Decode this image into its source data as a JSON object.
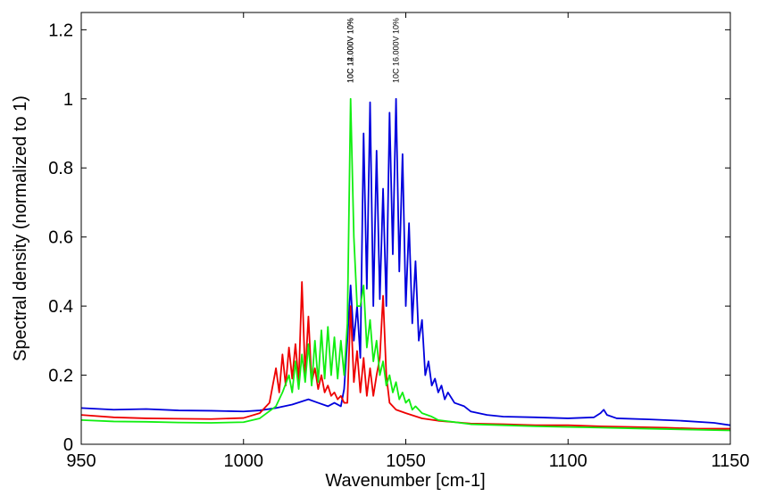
{
  "chart_data": {
    "type": "line",
    "title": "",
    "xlabel": "Wavenumber [cm-1]",
    "ylabel": "Spectral density (normalized to 1)",
    "xlim": [
      950,
      1150
    ],
    "ylim": [
      0,
      1.25
    ],
    "xticks": [
      950,
      1000,
      1050,
      1100,
      1150
    ],
    "xtick_labels": [
      "950",
      "1000",
      "1050",
      "1100",
      "1150"
    ],
    "yticks": [
      0,
      0.2,
      0.4,
      0.6,
      0.8,
      1.0,
      1.2
    ],
    "ytick_labels": [
      "0",
      "0.2",
      "0.4",
      "0.6",
      "0.8",
      "1",
      "1.2"
    ],
    "grid": false,
    "legend": "none",
    "peak_labels": [
      {
        "x": 1033,
        "text": "10C 12.000V 10%"
      },
      {
        "x": 1033,
        "text": "10C 14.000V 10%"
      },
      {
        "x": 1047,
        "text": "10C 16.000V 10%"
      }
    ],
    "series": [
      {
        "color": "#0000dd",
        "points": [
          [
            950,
            0.105
          ],
          [
            960,
            0.1
          ],
          [
            970,
            0.102
          ],
          [
            980,
            0.098
          ],
          [
            990,
            0.097
          ],
          [
            1000,
            0.095
          ],
          [
            1005,
            0.098
          ],
          [
            1010,
            0.105
          ],
          [
            1015,
            0.115
          ],
          [
            1020,
            0.13
          ],
          [
            1023,
            0.12
          ],
          [
            1026,
            0.11
          ],
          [
            1028,
            0.12
          ],
          [
            1030,
            0.11
          ],
          [
            1031,
            0.16
          ],
          [
            1032,
            0.3
          ],
          [
            1033,
            0.46
          ],
          [
            1034,
            0.3
          ],
          [
            1035,
            0.4
          ],
          [
            1036,
            0.25
          ],
          [
            1037,
            0.9
          ],
          [
            1038,
            0.45
          ],
          [
            1039,
            0.99
          ],
          [
            1040,
            0.4
          ],
          [
            1041,
            0.85
          ],
          [
            1042,
            0.42
          ],
          [
            1043,
            0.74
          ],
          [
            1044,
            0.4
          ],
          [
            1045,
            0.96
          ],
          [
            1046,
            0.55
          ],
          [
            1047,
            1.0
          ],
          [
            1048,
            0.5
          ],
          [
            1049,
            0.84
          ],
          [
            1050,
            0.4
          ],
          [
            1051,
            0.64
          ],
          [
            1052,
            0.35
          ],
          [
            1053,
            0.53
          ],
          [
            1054,
            0.3
          ],
          [
            1055,
            0.36
          ],
          [
            1056,
            0.2
          ],
          [
            1057,
            0.24
          ],
          [
            1058,
            0.17
          ],
          [
            1059,
            0.19
          ],
          [
            1060,
            0.15
          ],
          [
            1061,
            0.17
          ],
          [
            1062,
            0.13
          ],
          [
            1063,
            0.15
          ],
          [
            1065,
            0.12
          ],
          [
            1068,
            0.11
          ],
          [
            1070,
            0.095
          ],
          [
            1075,
            0.085
          ],
          [
            1080,
            0.08
          ],
          [
            1090,
            0.078
          ],
          [
            1100,
            0.075
          ],
          [
            1108,
            0.078
          ],
          [
            1110,
            0.09
          ],
          [
            1111,
            0.1
          ],
          [
            1112,
            0.085
          ],
          [
            1115,
            0.075
          ],
          [
            1125,
            0.072
          ],
          [
            1135,
            0.068
          ],
          [
            1145,
            0.062
          ],
          [
            1150,
            0.055
          ]
        ]
      },
      {
        "color": "#ee0000",
        "points": [
          [
            950,
            0.085
          ],
          [
            960,
            0.078
          ],
          [
            970,
            0.075
          ],
          [
            980,
            0.074
          ],
          [
            990,
            0.073
          ],
          [
            1000,
            0.076
          ],
          [
            1005,
            0.09
          ],
          [
            1008,
            0.12
          ],
          [
            1010,
            0.22
          ],
          [
            1011,
            0.15
          ],
          [
            1012,
            0.26
          ],
          [
            1013,
            0.17
          ],
          [
            1014,
            0.28
          ],
          [
            1015,
            0.19
          ],
          [
            1016,
            0.29
          ],
          [
            1017,
            0.18
          ],
          [
            1018,
            0.47
          ],
          [
            1019,
            0.2
          ],
          [
            1020,
            0.37
          ],
          [
            1021,
            0.18
          ],
          [
            1022,
            0.22
          ],
          [
            1023,
            0.16
          ],
          [
            1024,
            0.2
          ],
          [
            1025,
            0.15
          ],
          [
            1026,
            0.17
          ],
          [
            1027,
            0.14
          ],
          [
            1028,
            0.15
          ],
          [
            1029,
            0.13
          ],
          [
            1030,
            0.14
          ],
          [
            1031,
            0.12
          ],
          [
            1032,
            0.12
          ],
          [
            1033,
            0.4
          ],
          [
            1034,
            0.18
          ],
          [
            1035,
            0.27
          ],
          [
            1036,
            0.15
          ],
          [
            1037,
            0.25
          ],
          [
            1038,
            0.14
          ],
          [
            1039,
            0.22
          ],
          [
            1040,
            0.14
          ],
          [
            1041,
            0.2
          ],
          [
            1042,
            0.25
          ],
          [
            1043,
            0.43
          ],
          [
            1044,
            0.2
          ],
          [
            1045,
            0.12
          ],
          [
            1047,
            0.1
          ],
          [
            1050,
            0.09
          ],
          [
            1055,
            0.075
          ],
          [
            1060,
            0.068
          ],
          [
            1070,
            0.06
          ],
          [
            1080,
            0.058
          ],
          [
            1090,
            0.055
          ],
          [
            1100,
            0.055
          ],
          [
            1110,
            0.052
          ],
          [
            1120,
            0.05
          ],
          [
            1130,
            0.048
          ],
          [
            1140,
            0.045
          ],
          [
            1150,
            0.045
          ]
        ]
      },
      {
        "color": "#11ee11",
        "points": [
          [
            950,
            0.07
          ],
          [
            960,
            0.066
          ],
          [
            970,
            0.065
          ],
          [
            980,
            0.063
          ],
          [
            990,
            0.062
          ],
          [
            1000,
            0.064
          ],
          [
            1005,
            0.075
          ],
          [
            1010,
            0.11
          ],
          [
            1012,
            0.15
          ],
          [
            1014,
            0.2
          ],
          [
            1015,
            0.15
          ],
          [
            1016,
            0.24
          ],
          [
            1017,
            0.16
          ],
          [
            1018,
            0.26
          ],
          [
            1019,
            0.18
          ],
          [
            1020,
            0.29
          ],
          [
            1021,
            0.17
          ],
          [
            1022,
            0.3
          ],
          [
            1023,
            0.18
          ],
          [
            1024,
            0.33
          ],
          [
            1025,
            0.19
          ],
          [
            1026,
            0.34
          ],
          [
            1027,
            0.2
          ],
          [
            1028,
            0.31
          ],
          [
            1029,
            0.19
          ],
          [
            1030,
            0.3
          ],
          [
            1031,
            0.2
          ],
          [
            1032,
            0.35
          ],
          [
            1033,
            1.0
          ],
          [
            1034,
            0.6
          ],
          [
            1035,
            0.4
          ],
          [
            1036,
            0.4
          ],
          [
            1037,
            0.46
          ],
          [
            1038,
            0.28
          ],
          [
            1039,
            0.36
          ],
          [
            1040,
            0.24
          ],
          [
            1041,
            0.3
          ],
          [
            1042,
            0.2
          ],
          [
            1043,
            0.24
          ],
          [
            1044,
            0.17
          ],
          [
            1045,
            0.2
          ],
          [
            1046,
            0.15
          ],
          [
            1047,
            0.18
          ],
          [
            1048,
            0.13
          ],
          [
            1049,
            0.15
          ],
          [
            1050,
            0.12
          ],
          [
            1051,
            0.13
          ],
          [
            1052,
            0.1
          ],
          [
            1053,
            0.11
          ],
          [
            1055,
            0.09
          ],
          [
            1058,
            0.08
          ],
          [
            1060,
            0.07
          ],
          [
            1070,
            0.058
          ],
          [
            1080,
            0.055
          ],
          [
            1090,
            0.052
          ],
          [
            1100,
            0.05
          ],
          [
            1110,
            0.048
          ],
          [
            1120,
            0.046
          ],
          [
            1130,
            0.044
          ],
          [
            1140,
            0.042
          ],
          [
            1150,
            0.04
          ]
        ]
      }
    ]
  }
}
